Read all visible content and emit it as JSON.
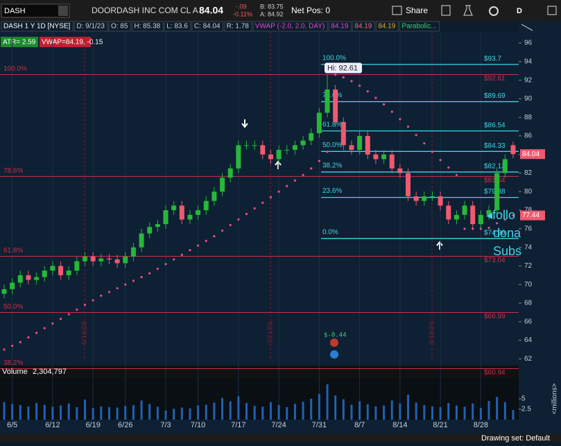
{
  "header": {
    "symbol": "DASH",
    "company": "DOORDASH INC COM CL A",
    "last": "84.04",
    "change": "-.09",
    "change_pct": "-0.11%",
    "bid": "B: 83.75",
    "ask": "A: 84.92",
    "net_pos": "Net Pos: 0",
    "share": "Share",
    "period": "D"
  },
  "chart_header": {
    "title": "DASH 1 Y 1D [NYSE]",
    "date": "D: 9/1/23",
    "open": "O: 85",
    "high": "H: 85.38",
    "low": "L: 83.6",
    "close": "C: 84.04",
    "range": "R: 1.78",
    "vwap": "VWAP (-2.0, 2.0, DAY)",
    "vwap_values": [
      "84.19",
      "84.19",
      "84.19"
    ],
    "sar": "Parabolic..."
  },
  "studies": {
    "atr": "ATR= 2.59",
    "vwap": "VWAP=84.19, -0.15"
  },
  "overlay_texts": [
    "◂follo",
    "dona",
    "Subs"
  ],
  "events": [
    "6/16/23",
    "7/21/23",
    "8/18/23"
  ],
  "annotation": "$-0.44",
  "footer": "Drawing set: Default",
  "chart_data": {
    "type": "candlestick",
    "categories": [
      null,
      "6/5",
      null,
      null,
      null,
      null,
      "6/12",
      null,
      null,
      null,
      null,
      "6/19",
      null,
      null,
      null,
      "6/26",
      null,
      null,
      null,
      null,
      "7/3",
      null,
      null,
      null,
      "7/10",
      null,
      null,
      null,
      null,
      "7/17",
      null,
      null,
      null,
      null,
      "7/24",
      null,
      null,
      null,
      null,
      "7/31",
      null,
      null,
      null,
      null,
      "8/7",
      null,
      null,
      null,
      null,
      "8/14",
      null,
      null,
      null,
      null,
      "8/21",
      null,
      null,
      null,
      null,
      "8/28",
      null,
      null,
      null,
      null
    ],
    "open": [
      69.0,
      69.5,
      70.2,
      71.0,
      70.5,
      70.8,
      71.5,
      72.0,
      71.0,
      71.5,
      72.5,
      73.0,
      72.5,
      72.8,
      72.7,
      72.3,
      73.0,
      74.0,
      75.5,
      76.2,
      76.5,
      78.0,
      78.5,
      77.0,
      77.5,
      78.0,
      79.0,
      80.0,
      81.5,
      82.5,
      85.0,
      85.0,
      85.0,
      84.0,
      83.5,
      84.5,
      84.5,
      85.0,
      85.5,
      86.3,
      88.5,
      91.0,
      87.5,
      85.0,
      84.5,
      86.0,
      84.0,
      83.5,
      84.0,
      82.5,
      82.0,
      79.5,
      79.0,
      79.5,
      79.5,
      78.5,
      77.0,
      77.5,
      78.5,
      76.5,
      77.5,
      78.0,
      82.0,
      85
    ],
    "high": [
      70.0,
      70.7,
      71.5,
      71.5,
      71.3,
      72.0,
      72.5,
      72.5,
      72.0,
      73.0,
      73.5,
      73.5,
      73.3,
      73.3,
      73.2,
      73.5,
      74.5,
      76.0,
      76.7,
      77.0,
      78.5,
      79.0,
      79.0,
      78.0,
      78.5,
      79.5,
      80.5,
      82.0,
      83.0,
      85.5,
      85.5,
      85.5,
      85.5,
      84.5,
      85.0,
      85.0,
      85.5,
      86.0,
      86.8,
      89.0,
      92.61,
      91.5,
      88.0,
      85.5,
      86.5,
      86.5,
      84.5,
      84.5,
      84.5,
      83.0,
      82.5,
      80.0,
      80.0,
      80.0,
      80.0,
      79.0,
      78.0,
      79.0,
      79.0,
      78.0,
      78.5,
      82.5,
      84.0,
      85.38
    ],
    "low": [
      68.5,
      69.0,
      69.7,
      70.0,
      70.0,
      70.3,
      71.0,
      70.5,
      70.5,
      71.0,
      72.0,
      72.0,
      72.0,
      72.2,
      71.8,
      71.8,
      72.5,
      73.5,
      75.0,
      75.7,
      76.0,
      77.5,
      76.5,
      76.5,
      77.0,
      77.5,
      78.5,
      79.5,
      81.0,
      82.0,
      84.5,
      84.5,
      83.5,
      83.0,
      83.0,
      84.0,
      84.0,
      84.5,
      85.0,
      85.8,
      88.0,
      87.0,
      84.5,
      84.0,
      84.0,
      83.5,
      83.0,
      83.0,
      82.0,
      81.5,
      79.0,
      78.5,
      78.5,
      79.0,
      78.0,
      76.5,
      76.5,
      77.0,
      76.0,
      76.0,
      77.0,
      77.5,
      81.5,
      83.6
    ],
    "close": [
      69.5,
      70.2,
      71.0,
      70.5,
      70.8,
      71.5,
      72.0,
      71.0,
      71.5,
      72.5,
      73.0,
      72.5,
      72.8,
      72.7,
      72.3,
      73.0,
      74.0,
      75.5,
      76.2,
      76.5,
      78.0,
      78.5,
      77.0,
      77.5,
      78.0,
      79.0,
      80.0,
      81.5,
      82.5,
      85.0,
      85.0,
      85.0,
      84.0,
      83.5,
      84.5,
      84.5,
      85.0,
      85.5,
      86.3,
      88.5,
      91.0,
      87.5,
      85.0,
      84.5,
      86.0,
      84.0,
      83.5,
      84.0,
      82.5,
      82.0,
      79.5,
      79.0,
      79.5,
      79.5,
      78.5,
      77.0,
      77.5,
      78.5,
      76.5,
      77.5,
      78.0,
      82.0,
      83.5,
      84.04
    ],
    "up_color": "#27b83a",
    "down_color": "#ef5a6f",
    "ylim": [
      61.8,
      97.2
    ],
    "yticks": [
      62,
      64,
      66,
      68,
      70,
      72,
      74,
      76,
      78,
      80,
      82,
      84,
      86,
      88,
      90,
      92,
      94,
      96
    ],
    "hi_label": "Hi: 92.61",
    "sar": {
      "color": "#e8508a",
      "values": [
        63.0,
        63.4,
        63.8,
        64.3,
        64.8,
        65.3,
        65.8,
        66.3,
        66.8,
        67.3,
        67.8,
        68.3,
        68.8,
        69.2,
        69.6,
        70.0,
        70.4,
        70.8,
        71.2,
        71.7,
        72.2,
        72.7,
        73.2,
        73.7,
        74.2,
        74.7,
        75.2,
        75.8,
        76.4,
        77.0,
        77.6,
        78.2,
        78.8,
        79.4,
        80.0,
        80.6,
        81.2,
        81.8,
        82.5,
        83.3,
        84.3,
        92.6,
        92.3,
        91.9,
        91.4,
        90.8,
        90.1,
        89.4,
        88.6,
        87.8,
        87.0,
        86.1,
        85.2,
        84.3,
        83.4,
        82.6,
        81.8,
        76.0,
        76.0,
        76.0,
        76.1,
        76.6,
        77.0,
        77.44
      ]
    },
    "fib_long": {
      "color": "#c9304a",
      "levels": [
        {
          "label": "100.0%",
          "price": 92.61,
          "price_label": "$92.61"
        },
        {
          "label": "78.6%",
          "price": 81.64,
          "price_label": "$81.64"
        },
        {
          "label": "61.8%",
          "price": 73.04,
          "price_label": "$73.04"
        },
        {
          "label": "50.0%",
          "price": 66.99,
          "price_label": "$66.99"
        },
        {
          "label": "38.2%",
          "price": 60.94,
          "price_label": "$60.94"
        }
      ]
    },
    "fib_short": {
      "color": "#3fd6e6",
      "levels": [
        {
          "label": "100.0%",
          "price": 93.7,
          "price_label": "$93.7"
        },
        {
          "label": "78.6%",
          "price": 89.69,
          "price_label": "$89.69"
        },
        {
          "label": "61.8%",
          "price": 86.54,
          "price_label": "$86.54"
        },
        {
          "label": "50.0%",
          "price": 84.33,
          "price_label": "$84.33"
        },
        {
          "label": "38.2%",
          "price": 82.12,
          "price_label": "$82.12"
        },
        {
          "label": "23.6%",
          "price": 79.38,
          "price_label": "$79.38"
        },
        {
          "label": "0.0%",
          "price": 74.96,
          "price_label": "$74.96"
        }
      ]
    },
    "volume": {
      "title": "Volume",
      "readout": "2,304,797",
      "unit": "<millions>",
      "color": "#1f62b5",
      "values": [
        4.2,
        3.8,
        3.5,
        3.2,
        4.0,
        3.6,
        3.1,
        3.4,
        3.9,
        3.0,
        4.8,
        2.8,
        3.2,
        3.0,
        2.9,
        3.3,
        3.5,
        4.6,
        3.8,
        3.1,
        2.2,
        2.6,
        2.9,
        2.7,
        3.4,
        3.6,
        4.1,
        5.2,
        4.4,
        5.6,
        4.0,
        3.3,
        3.1,
        4.2,
        3.5,
        3.0,
        3.8,
        4.3,
        5.0,
        6.2,
        8.5,
        5.8,
        4.9,
        3.6,
        4.4,
        3.7,
        3.2,
        3.4,
        4.6,
        3.9,
        6.0,
        4.1,
        3.5,
        3.2,
        3.0,
        4.0,
        3.4,
        3.1,
        3.9,
        2.8,
        4.5,
        5.5,
        4.2,
        2.304797
      ],
      "ylim": [
        0,
        13
      ],
      "yticks": [
        2.5,
        5
      ]
    }
  }
}
